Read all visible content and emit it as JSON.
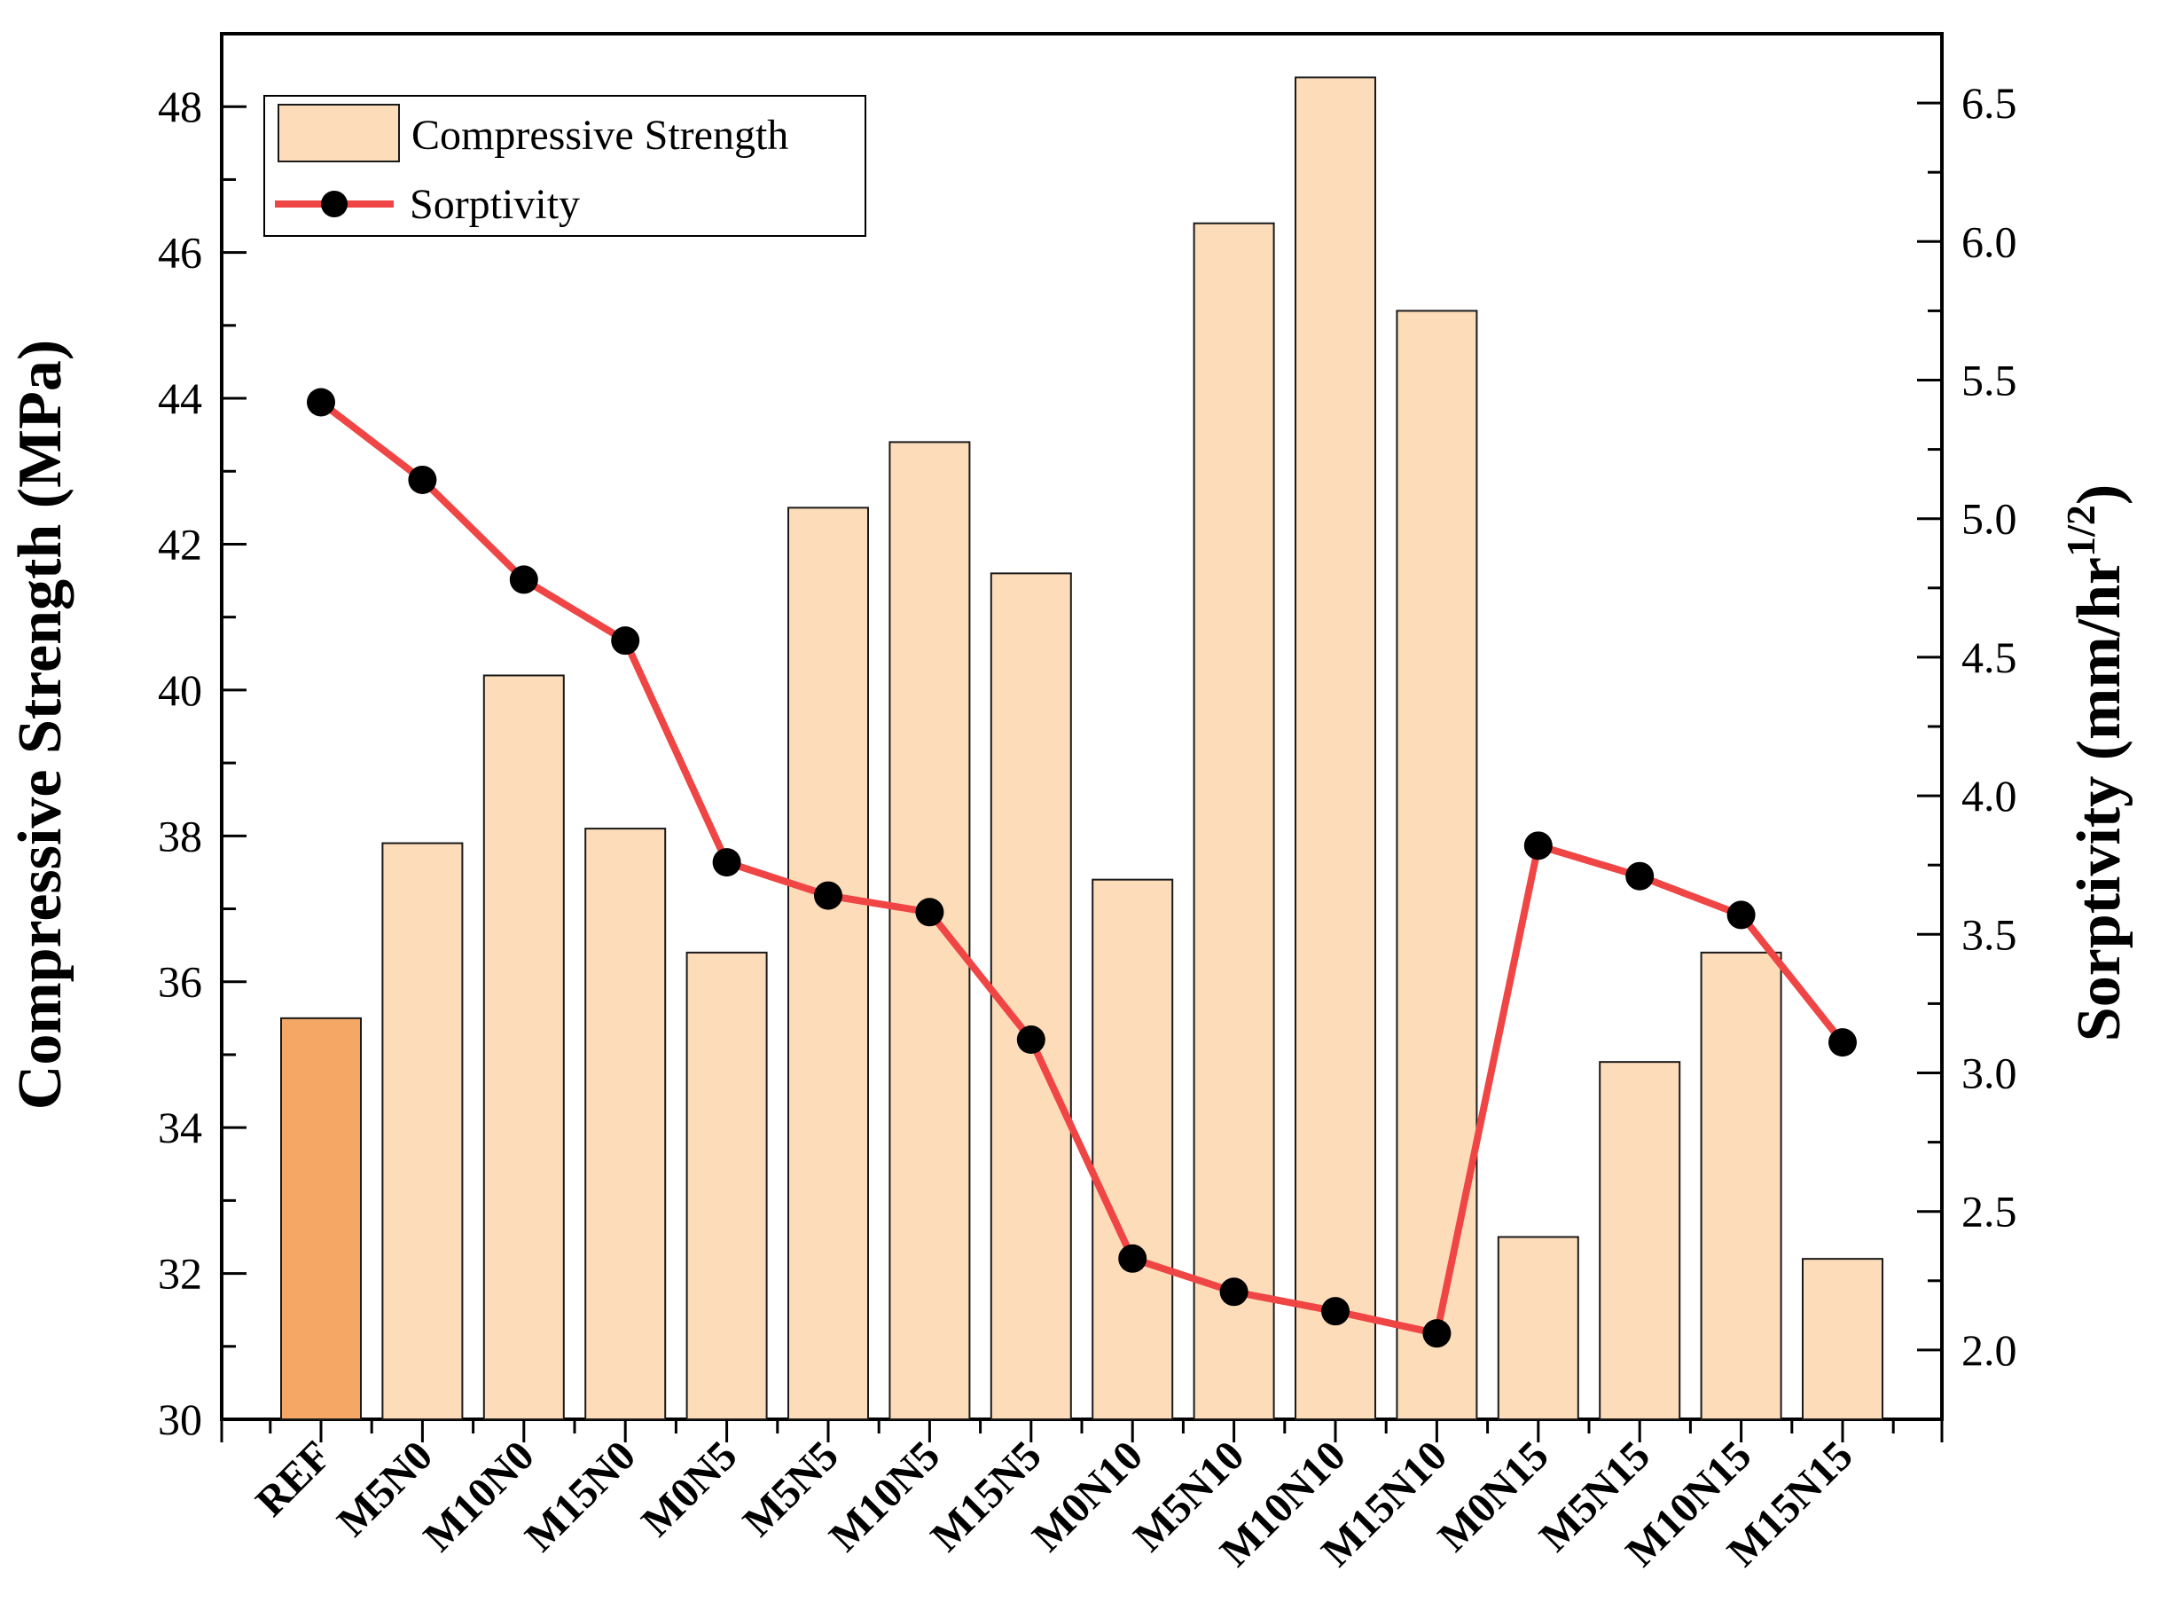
{
  "chart_data": {
    "type": "bar",
    "categories": [
      "REF",
      "M5N0",
      "M10N0",
      "M15N0",
      "M0N5",
      "M5N5",
      "M10N5",
      "M15N5",
      "M0N10",
      "M5N10",
      "M10N10",
      "M15N10",
      "M0N15",
      "M5N15",
      "M10N15",
      "M15N15"
    ],
    "series": [
      {
        "name": "Compressive Strength",
        "type": "bar",
        "axis": "left",
        "values": [
          35.5,
          37.9,
          40.2,
          38.1,
          36.4,
          42.5,
          43.4,
          41.6,
          37.4,
          46.4,
          48.4,
          45.2,
          32.5,
          34.9,
          36.4,
          32.2
        ]
      },
      {
        "name": "Sorptivity",
        "type": "line",
        "axis": "right",
        "values": [
          5.42,
          5.14,
          4.78,
          4.56,
          3.76,
          3.64,
          3.58,
          3.12,
          2.33,
          2.21,
          2.14,
          2.06,
          3.82,
          3.71,
          3.57,
          3.11
        ]
      }
    ],
    "ylabel": "Compressive Strength (MPa)",
    "y2label_main": "Sorptivity (mm/hr",
    "y2label_sup": "1/2",
    "y2label_close": ")",
    "ylim": [
      30,
      49
    ],
    "y2lim": [
      1.75,
      6.75
    ],
    "yticks": [
      "30",
      "32",
      "34",
      "36",
      "38",
      "40",
      "42",
      "44",
      "46",
      "48"
    ],
    "y2ticks": [
      "2.0",
      "2.5",
      "3.0",
      "3.5",
      "4.0",
      "4.5",
      "5.0",
      "5.5",
      "6.0",
      "6.5"
    ],
    "legend_position": "top-left",
    "colors": {
      "ref_bar": "#F5A865",
      "bar": "#FDDCBA",
      "bar_edge": "#1a1a1a",
      "line": "#F04545",
      "marker": "#000000"
    }
  },
  "legend": {
    "bar_label": "Compressive Strength",
    "line_label": "Sorptivity"
  }
}
